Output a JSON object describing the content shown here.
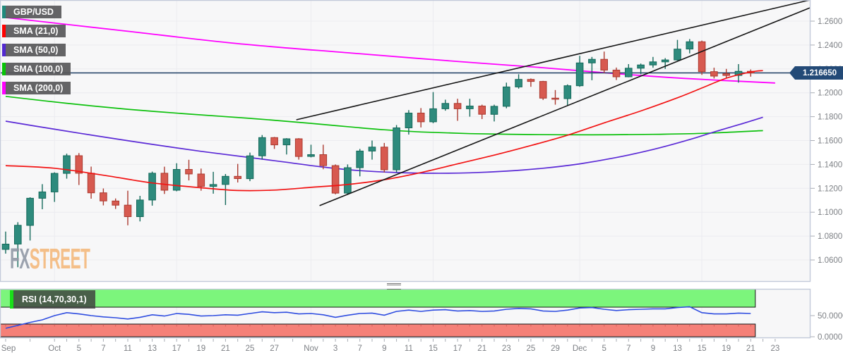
{
  "chart": {
    "pair": "GBP/USD",
    "legend": [
      {
        "label": "GBP/USD",
        "accent": "#1f8a7c"
      },
      {
        "label": "SMA (21,0)",
        "accent": "#ff0000"
      },
      {
        "label": "SMA (50,0)",
        "accent": "#5229d1"
      },
      {
        "label": "SMA (100,0)",
        "accent": "#06c506"
      },
      {
        "label": "SMA (200,0)",
        "accent": "#ff00ff"
      }
    ],
    "last_price_label": "1.216650",
    "colors": {
      "pane_bg": "#f7f7f8",
      "grid": "#ececf0",
      "pane_border": "#c3cad9",
      "candle_up_fill": "#2e8b7d",
      "candle_up_stroke": "#156a5b",
      "candle_down_fill": "#d75a50",
      "candle_down_stroke": "#ab3a30",
      "sma21": "#f21212",
      "sma50": "#5b2ad6",
      "sma100": "#0dc10d",
      "sma200": "#ff00ff",
      "trendline": "#161616",
      "price_line": "#1b3c63",
      "badge_bg": "#234a77",
      "axis_text": "#7d8085",
      "tick_mark": "#a9adb5",
      "rsi_line": "#2f4de0",
      "rsi_upper_fill": "#7cf57c",
      "rsi_lower_fill": "#f58078",
      "band_stroke": "#151515",
      "watermark_fx": "#9299a6",
      "watermark_street": "#f4ba7d"
    }
  },
  "chart_data": {
    "type": "candlestick",
    "title": "GBP/USD",
    "y_axis": {
      "ticks": [
        {
          "v": 1.26,
          "label": "1.2600"
        },
        {
          "v": 1.24,
          "label": "1.2400"
        },
        {
          "v": 1.22,
          "label": "1.2200"
        },
        {
          "v": 1.2,
          "label": "1.2000"
        },
        {
          "v": 1.18,
          "label": "1.1800"
        },
        {
          "v": 1.16,
          "label": "1.1600"
        },
        {
          "v": 1.14,
          "label": "1.1400"
        },
        {
          "v": 1.12,
          "label": "1.1200"
        },
        {
          "v": 1.1,
          "label": "1.1000"
        },
        {
          "v": 1.08,
          "label": "1.0800"
        },
        {
          "v": 1.06,
          "label": "1.0600"
        }
      ],
      "last_price": 1.21665
    },
    "x_axis": {
      "labels": [
        {
          "i": 0,
          "label": "Sep"
        },
        {
          "i": 4,
          "label": "Oct"
        },
        {
          "i": 6,
          "label": "5"
        },
        {
          "i": 8,
          "label": "7"
        },
        {
          "i": 10,
          "label": "11"
        },
        {
          "i": 12,
          "label": "13"
        },
        {
          "i": 14,
          "label": "17"
        },
        {
          "i": 16,
          "label": "19"
        },
        {
          "i": 18,
          "label": "21"
        },
        {
          "i": 20,
          "label": "25"
        },
        {
          "i": 22,
          "label": "27"
        },
        {
          "i": 25,
          "label": "Nov"
        },
        {
          "i": 27,
          "label": "3"
        },
        {
          "i": 29,
          "label": "7"
        },
        {
          "i": 31,
          "label": "9"
        },
        {
          "i": 33,
          "label": "11"
        },
        {
          "i": 35,
          "label": "15"
        },
        {
          "i": 37,
          "label": "17"
        },
        {
          "i": 39,
          "label": "21"
        },
        {
          "i": 41,
          "label": "23"
        },
        {
          "i": 43,
          "label": "25"
        },
        {
          "i": 45,
          "label": "29"
        },
        {
          "i": 47,
          "label": "Dec"
        },
        {
          "i": 49,
          "label": "5"
        },
        {
          "i": 51,
          "label": "7"
        },
        {
          "i": 53,
          "label": "9"
        },
        {
          "i": 55,
          "label": "13"
        },
        {
          "i": 57,
          "label": "15"
        },
        {
          "i": 59,
          "label": "19"
        },
        {
          "i": 61,
          "label": "21"
        },
        {
          "i": 63,
          "label": "23"
        }
      ],
      "month_grid_i": [
        4,
        14,
        25,
        35,
        47,
        57
      ]
    },
    "candles": [
      {
        "d": "Sep 27",
        "o": 1.0689,
        "h": 1.0838,
        "l": 1.0653,
        "c": 1.0733
      },
      {
        "d": "Sep 28",
        "o": 1.0733,
        "h": 1.0916,
        "l": 1.0539,
        "c": 1.089
      },
      {
        "d": "Sep 29",
        "o": 1.089,
        "h": 1.1125,
        "l": 1.0763,
        "c": 1.1117
      },
      {
        "d": "Sep 30",
        "o": 1.1117,
        "h": 1.1235,
        "l": 1.1025,
        "c": 1.117
      },
      {
        "d": "Oct 3",
        "o": 1.117,
        "h": 1.1334,
        "l": 1.1086,
        "c": 1.1325
      },
      {
        "d": "Oct 4",
        "o": 1.1325,
        "h": 1.149,
        "l": 1.1281,
        "c": 1.1473
      },
      {
        "d": "Oct 5",
        "o": 1.1473,
        "h": 1.1495,
        "l": 1.1228,
        "c": 1.1326
      },
      {
        "d": "Oct 6",
        "o": 1.1326,
        "h": 1.1382,
        "l": 1.1113,
        "c": 1.1162
      },
      {
        "d": "Oct 7",
        "o": 1.1162,
        "h": 1.1199,
        "l": 1.1057,
        "c": 1.1094
      },
      {
        "d": "Oct 10",
        "o": 1.1094,
        "h": 1.1115,
        "l": 1.1027,
        "c": 1.1059
      },
      {
        "d": "Oct 11",
        "o": 1.1059,
        "h": 1.118,
        "l": 1.089,
        "c": 1.0963
      },
      {
        "d": "Oct 12",
        "o": 1.0963,
        "h": 1.1137,
        "l": 1.0923,
        "c": 1.1102
      },
      {
        "d": "Oct 13",
        "o": 1.1102,
        "h": 1.134,
        "l": 1.1055,
        "c": 1.1326
      },
      {
        "d": "Oct 14",
        "o": 1.1326,
        "h": 1.1381,
        "l": 1.1153,
        "c": 1.1184
      },
      {
        "d": "Oct 17",
        "o": 1.1184,
        "h": 1.141,
        "l": 1.1175,
        "c": 1.1358
      },
      {
        "d": "Oct 18",
        "o": 1.1358,
        "h": 1.1439,
        "l": 1.1266,
        "c": 1.132
      },
      {
        "d": "Oct 19",
        "o": 1.132,
        "h": 1.1365,
        "l": 1.118,
        "c": 1.1216
      },
      {
        "d": "Oct 20",
        "o": 1.1216,
        "h": 1.1338,
        "l": 1.1155,
        "c": 1.1232
      },
      {
        "d": "Oct 21",
        "o": 1.1232,
        "h": 1.132,
        "l": 1.106,
        "c": 1.13
      },
      {
        "d": "Oct 24",
        "o": 1.13,
        "h": 1.1405,
        "l": 1.1249,
        "c": 1.1281
      },
      {
        "d": "Oct 25",
        "o": 1.1281,
        "h": 1.1499,
        "l": 1.126,
        "c": 1.1472
      },
      {
        "d": "Oct 26",
        "o": 1.1472,
        "h": 1.1646,
        "l": 1.1442,
        "c": 1.1625
      },
      {
        "d": "Oct 27",
        "o": 1.1625,
        "h": 1.163,
        "l": 1.153,
        "c": 1.1564
      },
      {
        "d": "Oct 28",
        "o": 1.1564,
        "h": 1.162,
        "l": 1.1483,
        "c": 1.1615
      },
      {
        "d": "Oct 31",
        "o": 1.1615,
        "h": 1.162,
        "l": 1.144,
        "c": 1.1467
      },
      {
        "d": "Nov 1",
        "o": 1.1467,
        "h": 1.1565,
        "l": 1.1459,
        "c": 1.1482
      },
      {
        "d": "Nov 2",
        "o": 1.1482,
        "h": 1.1565,
        "l": 1.136,
        "c": 1.139
      },
      {
        "d": "Nov 3",
        "o": 1.139,
        "h": 1.14,
        "l": 1.115,
        "c": 1.116
      },
      {
        "d": "Nov 4",
        "o": 1.116,
        "h": 1.14,
        "l": 1.1145,
        "c": 1.1373
      },
      {
        "d": "Nov 7",
        "o": 1.1373,
        "h": 1.153,
        "l": 1.13,
        "c": 1.1512
      },
      {
        "d": "Nov 8",
        "o": 1.1512,
        "h": 1.16,
        "l": 1.144,
        "c": 1.1545
      },
      {
        "d": "Nov 9",
        "o": 1.1545,
        "h": 1.158,
        "l": 1.1333,
        "c": 1.1355
      },
      {
        "d": "Nov 10",
        "o": 1.1355,
        "h": 1.173,
        "l": 1.1332,
        "c": 1.1706
      },
      {
        "d": "Nov 11",
        "o": 1.1706,
        "h": 1.1855,
        "l": 1.165,
        "c": 1.183
      },
      {
        "d": "Nov 14",
        "o": 1.183,
        "h": 1.1872,
        "l": 1.171,
        "c": 1.1757
      },
      {
        "d": "Nov 15",
        "o": 1.1757,
        "h": 1.2006,
        "l": 1.1745,
        "c": 1.1866
      },
      {
        "d": "Nov 16",
        "o": 1.1866,
        "h": 1.1942,
        "l": 1.185,
        "c": 1.1911
      },
      {
        "d": "Nov 17",
        "o": 1.1911,
        "h": 1.195,
        "l": 1.1765,
        "c": 1.1866
      },
      {
        "d": "Nov 18",
        "o": 1.1866,
        "h": 1.195,
        "l": 1.18,
        "c": 1.1889
      },
      {
        "d": "Nov 21",
        "o": 1.1889,
        "h": 1.19,
        "l": 1.178,
        "c": 1.182
      },
      {
        "d": "Nov 22",
        "o": 1.182,
        "h": 1.19,
        "l": 1.176,
        "c": 1.1887
      },
      {
        "d": "Nov 23",
        "o": 1.1887,
        "h": 1.2085,
        "l": 1.187,
        "c": 1.2049
      },
      {
        "d": "Nov 24",
        "o": 1.2049,
        "h": 1.2155,
        "l": 1.2035,
        "c": 1.2112
      },
      {
        "d": "Nov 25",
        "o": 1.2112,
        "h": 1.212,
        "l": 1.205,
        "c": 1.2095
      },
      {
        "d": "Nov 28",
        "o": 1.2095,
        "h": 1.21,
        "l": 1.194,
        "c": 1.1955
      },
      {
        "d": "Nov 29",
        "o": 1.1955,
        "h": 1.2023,
        "l": 1.19,
        "c": 1.1951
      },
      {
        "d": "Nov 30",
        "o": 1.1951,
        "h": 1.207,
        "l": 1.1895,
        "c": 1.2059
      },
      {
        "d": "Dec 1",
        "o": 1.2059,
        "h": 1.231,
        "l": 1.205,
        "c": 1.225
      },
      {
        "d": "Dec 2",
        "o": 1.225,
        "h": 1.23,
        "l": 1.2105,
        "c": 1.228
      },
      {
        "d": "Dec 5",
        "o": 1.228,
        "h": 1.2345,
        "l": 1.2165,
        "c": 1.219
      },
      {
        "d": "Dec 6",
        "o": 1.219,
        "h": 1.2211,
        "l": 1.2107,
        "c": 1.2134
      },
      {
        "d": "Dec 7",
        "o": 1.2134,
        "h": 1.224,
        "l": 1.213,
        "c": 1.2206
      },
      {
        "d": "Dec 8",
        "o": 1.2206,
        "h": 1.2245,
        "l": 1.2155,
        "c": 1.2233
      },
      {
        "d": "Dec 9",
        "o": 1.2233,
        "h": 1.23,
        "l": 1.221,
        "c": 1.2259
      },
      {
        "d": "Dec 12",
        "o": 1.2259,
        "h": 1.229,
        "l": 1.22,
        "c": 1.2275
      },
      {
        "d": "Dec 13",
        "o": 1.2275,
        "h": 1.2443,
        "l": 1.227,
        "c": 1.2366
      },
      {
        "d": "Dec 14",
        "o": 1.2366,
        "h": 1.245,
        "l": 1.233,
        "c": 1.2427
      },
      {
        "d": "Dec 15",
        "o": 1.2427,
        "h": 1.2437,
        "l": 1.215,
        "c": 1.2177
      },
      {
        "d": "Dec 16",
        "o": 1.2177,
        "h": 1.221,
        "l": 1.212,
        "c": 1.214
      },
      {
        "d": "Dec 19",
        "o": 1.216,
        "h": 1.22,
        "l": 1.2122,
        "c": 1.2145
      },
      {
        "d": "Dec 20",
        "o": 1.2145,
        "h": 1.224,
        "l": 1.2085,
        "c": 1.218
      },
      {
        "d": "Dec 21",
        "o": 1.218,
        "h": 1.2195,
        "l": 1.2135,
        "c": 1.21665
      }
    ],
    "overlays": [
      {
        "name": "SMA 21",
        "color_key": "sma21",
        "width": 1.7,
        "points": [
          [
            0,
            1.139
          ],
          [
            4,
            1.1368
          ],
          [
            8,
            1.131
          ],
          [
            12,
            1.1245
          ],
          [
            16,
            1.1205
          ],
          [
            19,
            1.1182
          ],
          [
            22,
            1.1185
          ],
          [
            25,
            1.1208
          ],
          [
            28,
            1.1232
          ],
          [
            31,
            1.1272
          ],
          [
            34,
            1.1332
          ],
          [
            37,
            1.1405
          ],
          [
            40,
            1.1478
          ],
          [
            43,
            1.1558
          ],
          [
            46,
            1.1645
          ],
          [
            49,
            1.1748
          ],
          [
            52,
            1.1848
          ],
          [
            55,
            1.1958
          ],
          [
            57,
            1.204
          ],
          [
            59,
            1.2122
          ],
          [
            61,
            1.2174
          ],
          [
            62,
            1.2186
          ]
        ]
      },
      {
        "name": "SMA 50",
        "color_key": "sma50",
        "width": 1.7,
        "points": [
          [
            0,
            1.1762
          ],
          [
            4,
            1.1695
          ],
          [
            8,
            1.163
          ],
          [
            12,
            1.1568
          ],
          [
            16,
            1.151
          ],
          [
            20,
            1.1458
          ],
          [
            23,
            1.1418
          ],
          [
            26,
            1.1378
          ],
          [
            29,
            1.1348
          ],
          [
            32,
            1.1332
          ],
          [
            35,
            1.1326
          ],
          [
            38,
            1.133
          ],
          [
            41,
            1.1344
          ],
          [
            44,
            1.1368
          ],
          [
            47,
            1.1405
          ],
          [
            50,
            1.1458
          ],
          [
            53,
            1.1525
          ],
          [
            56,
            1.1608
          ],
          [
            58,
            1.1672
          ],
          [
            60,
            1.1732
          ],
          [
            62,
            1.1795
          ]
        ]
      },
      {
        "name": "SMA 100",
        "color_key": "sma100",
        "width": 1.7,
        "points": [
          [
            0,
            1.197
          ],
          [
            5,
            1.1912
          ],
          [
            10,
            1.1862
          ],
          [
            15,
            1.1822
          ],
          [
            20,
            1.1786
          ],
          [
            25,
            1.1744
          ],
          [
            28,
            1.1716
          ],
          [
            31,
            1.169
          ],
          [
            34,
            1.1672
          ],
          [
            38,
            1.1658
          ],
          [
            43,
            1.165
          ],
          [
            48,
            1.1648
          ],
          [
            53,
            1.1652
          ],
          [
            57,
            1.166
          ],
          [
            62,
            1.1683
          ]
        ]
      },
      {
        "name": "SMA 200",
        "color_key": "sma200",
        "width": 1.8,
        "points": [
          [
            0,
            1.263
          ],
          [
            10,
            1.2515
          ],
          [
            19,
            1.2412
          ],
          [
            28,
            1.2335
          ],
          [
            36,
            1.227
          ],
          [
            44,
            1.221
          ],
          [
            50,
            1.216
          ],
          [
            56,
            1.2118
          ],
          [
            63,
            1.2082
          ]
        ]
      }
    ],
    "trendlines": [
      {
        "i1": 23.8,
        "p1": 1.1774,
        "i2": 65.8,
        "p2": 1.2776
      },
      {
        "i1": 25.7,
        "p1": 1.1055,
        "i2": 65.9,
        "p2": 1.2714
      }
    ],
    "current_price": 1.21665,
    "rsi": {
      "label": "RSI (14,70,30,1)",
      "period": 14,
      "upper_band": 70,
      "lower_band": 30,
      "axis_labels": [
        {
          "v": 50,
          "label": "50.0000"
        },
        {
          "v": 0,
          "label": "0.0000"
        }
      ],
      "values": [
        20,
        27,
        34,
        40,
        50,
        57,
        54,
        50,
        47,
        45,
        42,
        46,
        52,
        49,
        55,
        53,
        49,
        50,
        52,
        51,
        55,
        59,
        57,
        58,
        54,
        55,
        52,
        46,
        51,
        55,
        56,
        51,
        60,
        63,
        60,
        63,
        64,
        61,
        62,
        60,
        61,
        65,
        67,
        66,
        61,
        60,
        63,
        68,
        69,
        65,
        62,
        64,
        65,
        66,
        66,
        69,
        71,
        57,
        54,
        54,
        56,
        55
      ]
    }
  },
  "watermark": {
    "fx": "FX",
    "street": "STREET"
  }
}
